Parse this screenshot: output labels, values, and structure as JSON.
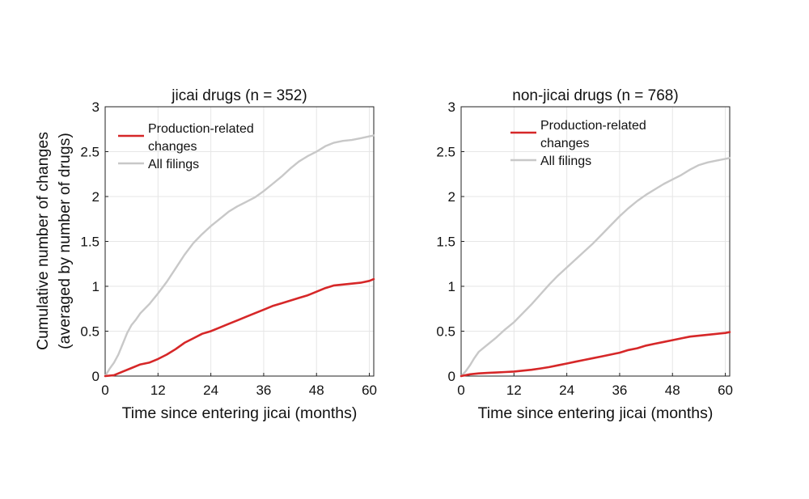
{
  "ylabel_line1": "Cumulative number of changes",
  "ylabel_line2": "(averaged by number of drugs)",
  "xlabel": "Time since entering jicai (months)",
  "legend": {
    "production_line1": "Production-related",
    "production_line2": "changes",
    "all": "All filings"
  },
  "colors": {
    "production": "#d62728",
    "all": "#c8c8c8",
    "grid": "#e6e6e6",
    "axis": "#222222"
  },
  "chart_data": [
    {
      "type": "line",
      "title": "jicai drugs (n = 352)",
      "xlabel": "Time since entering jicai (months)",
      "ylabel": "Cumulative number of changes (averaged by number of drugs)",
      "xlim": [
        0,
        61
      ],
      "ylim": [
        0,
        3
      ],
      "xticks": [
        0,
        12,
        24,
        36,
        48,
        60
      ],
      "xtick_labels": [
        "0",
        "12",
        "24",
        "36",
        "48",
        "60"
      ],
      "yticks": [
        0,
        0.5,
        1,
        1.5,
        2,
        2.5,
        3
      ],
      "ytick_labels": [
        "0",
        "0.5",
        "1",
        "1.5",
        "2",
        "2.5",
        "3"
      ],
      "grid": true,
      "legend_position": "top-left",
      "series": [
        {
          "name": "Production-related changes",
          "color": "#d62728",
          "x": [
            0,
            2,
            4,
            6,
            8,
            10,
            12,
            14,
            16,
            18,
            20,
            22,
            24,
            26,
            28,
            30,
            32,
            34,
            36,
            38,
            40,
            42,
            44,
            46,
            48,
            50,
            52,
            54,
            56,
            58,
            60,
            61
          ],
          "y": [
            0,
            0.01,
            0.05,
            0.09,
            0.13,
            0.15,
            0.19,
            0.24,
            0.3,
            0.37,
            0.42,
            0.47,
            0.5,
            0.54,
            0.58,
            0.62,
            0.66,
            0.7,
            0.74,
            0.78,
            0.81,
            0.84,
            0.87,
            0.9,
            0.94,
            0.98,
            1.01,
            1.02,
            1.03,
            1.04,
            1.06,
            1.08
          ]
        },
        {
          "name": "All filings",
          "color": "#c8c8c8",
          "x": [
            0,
            1,
            2,
            3,
            4,
            5,
            6,
            7,
            8,
            10,
            12,
            14,
            16,
            18,
            20,
            22,
            24,
            26,
            28,
            30,
            32,
            34,
            36,
            38,
            40,
            42,
            44,
            46,
            48,
            50,
            52,
            54,
            56,
            58,
            60,
            61
          ],
          "y": [
            0,
            0.08,
            0.15,
            0.24,
            0.36,
            0.48,
            0.57,
            0.63,
            0.7,
            0.8,
            0.92,
            1.05,
            1.2,
            1.35,
            1.48,
            1.58,
            1.67,
            1.75,
            1.83,
            1.89,
            1.94,
            1.99,
            2.06,
            2.14,
            2.22,
            2.31,
            2.39,
            2.45,
            2.5,
            2.56,
            2.6,
            2.62,
            2.63,
            2.65,
            2.67,
            2.68
          ]
        }
      ]
    },
    {
      "type": "line",
      "title": "non-jicai drugs (n = 768)",
      "xlabel": "Time since entering jicai (months)",
      "xlim": [
        0,
        61
      ],
      "ylim": [
        0,
        3
      ],
      "xticks": [
        0,
        12,
        24,
        36,
        48,
        60
      ],
      "xtick_labels": [
        "0",
        "12",
        "24",
        "36",
        "48",
        "60"
      ],
      "yticks": [
        0,
        0.5,
        1,
        1.5,
        2,
        2.5,
        3
      ],
      "ytick_labels": [
        "0",
        "0.5",
        "1",
        "1.5",
        "2",
        "2.5",
        "3"
      ],
      "grid": true,
      "legend_position": "top-left",
      "series": [
        {
          "name": "Production-related changes",
          "color": "#d62728",
          "x": [
            0,
            2,
            4,
            6,
            8,
            10,
            12,
            14,
            16,
            18,
            20,
            22,
            24,
            26,
            28,
            30,
            32,
            34,
            36,
            38,
            40,
            42,
            44,
            46,
            48,
            50,
            52,
            54,
            56,
            58,
            60,
            61
          ],
          "y": [
            0,
            0.02,
            0.03,
            0.035,
            0.04,
            0.045,
            0.05,
            0.06,
            0.07,
            0.085,
            0.1,
            0.12,
            0.14,
            0.16,
            0.18,
            0.2,
            0.22,
            0.24,
            0.26,
            0.29,
            0.31,
            0.34,
            0.36,
            0.38,
            0.4,
            0.42,
            0.44,
            0.45,
            0.46,
            0.47,
            0.48,
            0.49
          ]
        },
        {
          "name": "All filings",
          "color": "#c8c8c8",
          "x": [
            0,
            1,
            2,
            3,
            4,
            5,
            6,
            7,
            8,
            10,
            12,
            14,
            16,
            18,
            20,
            22,
            24,
            26,
            28,
            30,
            32,
            34,
            36,
            38,
            40,
            42,
            44,
            46,
            48,
            50,
            52,
            54,
            56,
            58,
            60,
            61
          ],
          "y": [
            0,
            0.05,
            0.12,
            0.2,
            0.27,
            0.31,
            0.35,
            0.39,
            0.43,
            0.52,
            0.6,
            0.7,
            0.8,
            0.91,
            1.02,
            1.12,
            1.21,
            1.3,
            1.39,
            1.48,
            1.58,
            1.68,
            1.78,
            1.87,
            1.95,
            2.02,
            2.08,
            2.14,
            2.19,
            2.24,
            2.3,
            2.35,
            2.38,
            2.4,
            2.42,
            2.43
          ]
        }
      ]
    }
  ]
}
